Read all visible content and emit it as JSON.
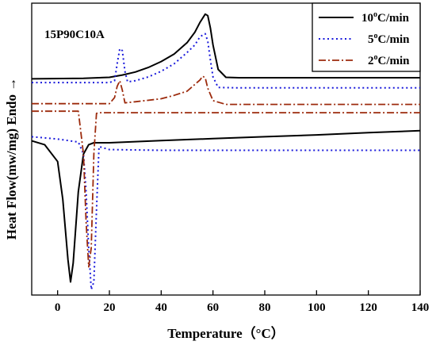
{
  "chart_data": {
    "type": "line",
    "title": "",
    "annotation": "15P90C10A",
    "xlabel": "Temperature（°C）",
    "ylabel": "Heat Flow(mw/mg) Endo →",
    "xlim": [
      -10,
      140
    ],
    "xticks": [
      0,
      20,
      40,
      60,
      80,
      100,
      120,
      140
    ],
    "y_tick_labels": false,
    "grid": false,
    "legend_position": "top-right",
    "series": [
      {
        "name": "10°C/min",
        "legend_main": "10",
        "legend_sup": "o",
        "legend_tail": "C/min",
        "style": "solid",
        "color": "#000000",
        "heating": {
          "x": [
            -10,
            10,
            20,
            25,
            30,
            35,
            40,
            45,
            50,
            53,
            55,
            57,
            58,
            59,
            60,
            62,
            65,
            70,
            80,
            100,
            120,
            140
          ],
          "y": [
            0.0,
            0.15,
            0.4,
            1.0,
            1.8,
            3.0,
            4.6,
            6.6,
            9.6,
            12.4,
            15.0,
            17.2,
            16.8,
            13.5,
            9.0,
            2.5,
            0.4,
            0.3,
            0.3,
            0.3,
            0.3,
            0.3
          ]
        },
        "cooling": {
          "x": [
            -10,
            -5,
            0,
            2,
            4,
            5,
            6,
            8,
            10,
            12,
            14,
            20,
            40,
            60,
            80,
            100,
            120,
            140
          ],
          "y": [
            -16.5,
            -17.5,
            -22.0,
            -32.0,
            -48.0,
            -54.0,
            -49.0,
            -30.0,
            -20.0,
            -17.5,
            -17.0,
            -17.0,
            -16.4,
            -15.9,
            -15.4,
            -14.9,
            -14.3,
            -13.8
          ]
        }
      },
      {
        "name": "5°C/min",
        "legend_main": "5",
        "legend_sup": "o",
        "legend_tail": "C/min",
        "style": "dotted",
        "color": "#1a1adb",
        "heating": {
          "x": [
            -10,
            10,
            20,
            22,
            23,
            24,
            25,
            26,
            27,
            30,
            35,
            40,
            45,
            50,
            53,
            55,
            57,
            58,
            59,
            60,
            62,
            70,
            80,
            100,
            120,
            140
          ],
          "y": [
            -1.0,
            -1.0,
            -1.0,
            -0.5,
            4.0,
            8.0,
            7.5,
            2.0,
            -0.8,
            -0.5,
            0.5,
            2.0,
            4.0,
            7.0,
            9.0,
            11.2,
            12.0,
            10.0,
            5.0,
            0.5,
            -2.3,
            -2.4,
            -2.4,
            -2.4,
            -2.4,
            -2.4
          ]
        },
        "cooling": {
          "x": [
            -10,
            0,
            8,
            10,
            11,
            12,
            13,
            14,
            15,
            16,
            20,
            40,
            60,
            80,
            100,
            120,
            140
          ],
          "y": [
            -15.4,
            -16.0,
            -16.8,
            -20.0,
            -30.0,
            -45.0,
            -56.0,
            -54.0,
            -35.0,
            -18.0,
            -18.8,
            -19.0,
            -19.0,
            -19.0,
            -19.0,
            -19.0,
            -19.0
          ]
        }
      },
      {
        "name": "2°C/min",
        "legend_main": "2",
        "legend_sup": "o",
        "legend_tail": "C/min",
        "style": "dashdot",
        "color": "#9c2a0c",
        "heating": {
          "x": [
            -10,
            10,
            20,
            22,
            23,
            24,
            25,
            26,
            30,
            40,
            45,
            50,
            55,
            56,
            57,
            58,
            60,
            65,
            80,
            100,
            120,
            140
          ],
          "y": [
            -6.6,
            -6.6,
            -6.6,
            -5.0,
            -2.0,
            -0.5,
            -3.0,
            -6.4,
            -6.1,
            -5.3,
            -4.4,
            -3.3,
            -0.3,
            0.7,
            0.3,
            -2.5,
            -5.8,
            -6.8,
            -6.8,
            -6.8,
            -6.8,
            -6.8
          ]
        },
        "cooling": {
          "x": [
            -10,
            5,
            8,
            10,
            11,
            12,
            13,
            14,
            15,
            16,
            20,
            40,
            60,
            80,
            100,
            120,
            140
          ],
          "y": [
            -8.6,
            -8.6,
            -8.6,
            -20.0,
            -38.0,
            -50.0,
            -45.0,
            -20.0,
            -9.2,
            -9.0,
            -9.0,
            -9.0,
            -9.0,
            -9.0,
            -9.0,
            -9.0,
            -9.0
          ]
        }
      }
    ]
  }
}
